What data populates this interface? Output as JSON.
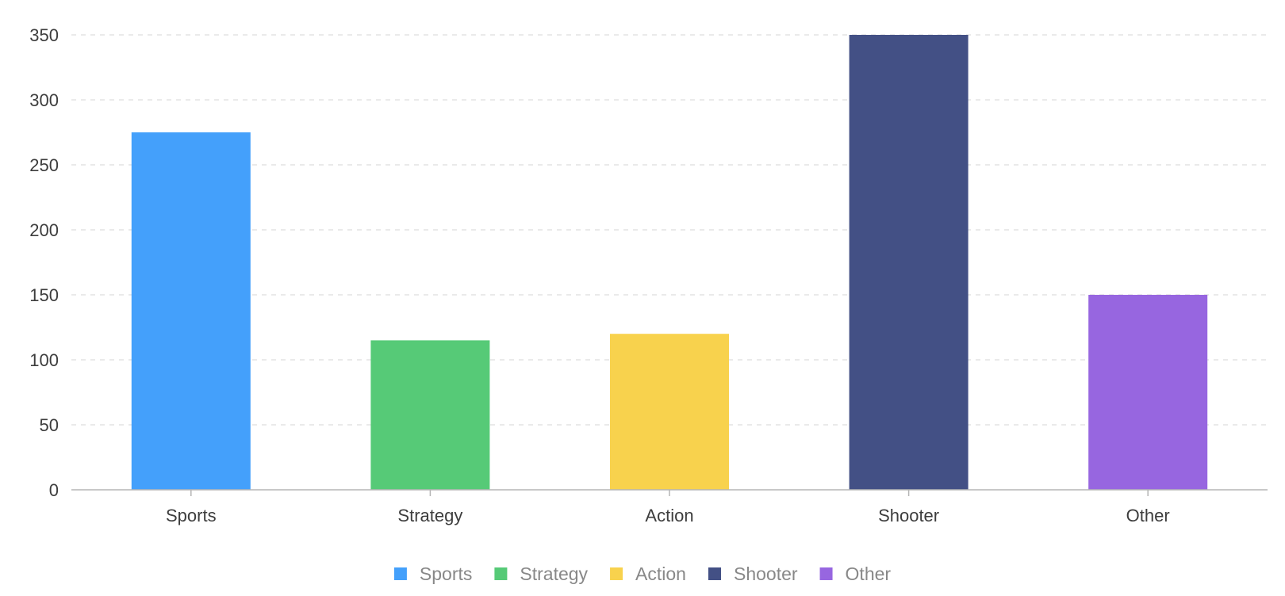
{
  "chart_data": {
    "type": "bar",
    "categories": [
      "Sports",
      "Strategy",
      "Action",
      "Shooter",
      "Other"
    ],
    "values": [
      275,
      115,
      120,
      350,
      150
    ],
    "colors": [
      "#44a0fb",
      "#56ca77",
      "#f8d24d",
      "#435085",
      "#9766e0"
    ],
    "ylim": [
      0,
      350
    ],
    "yticks": [
      0,
      50,
      100,
      150,
      200,
      250,
      300,
      350
    ],
    "grid": true,
    "legend": {
      "placement": "bottom-center",
      "entries": [
        "Sports",
        "Strategy",
        "Action",
        "Shooter",
        "Other"
      ]
    }
  }
}
